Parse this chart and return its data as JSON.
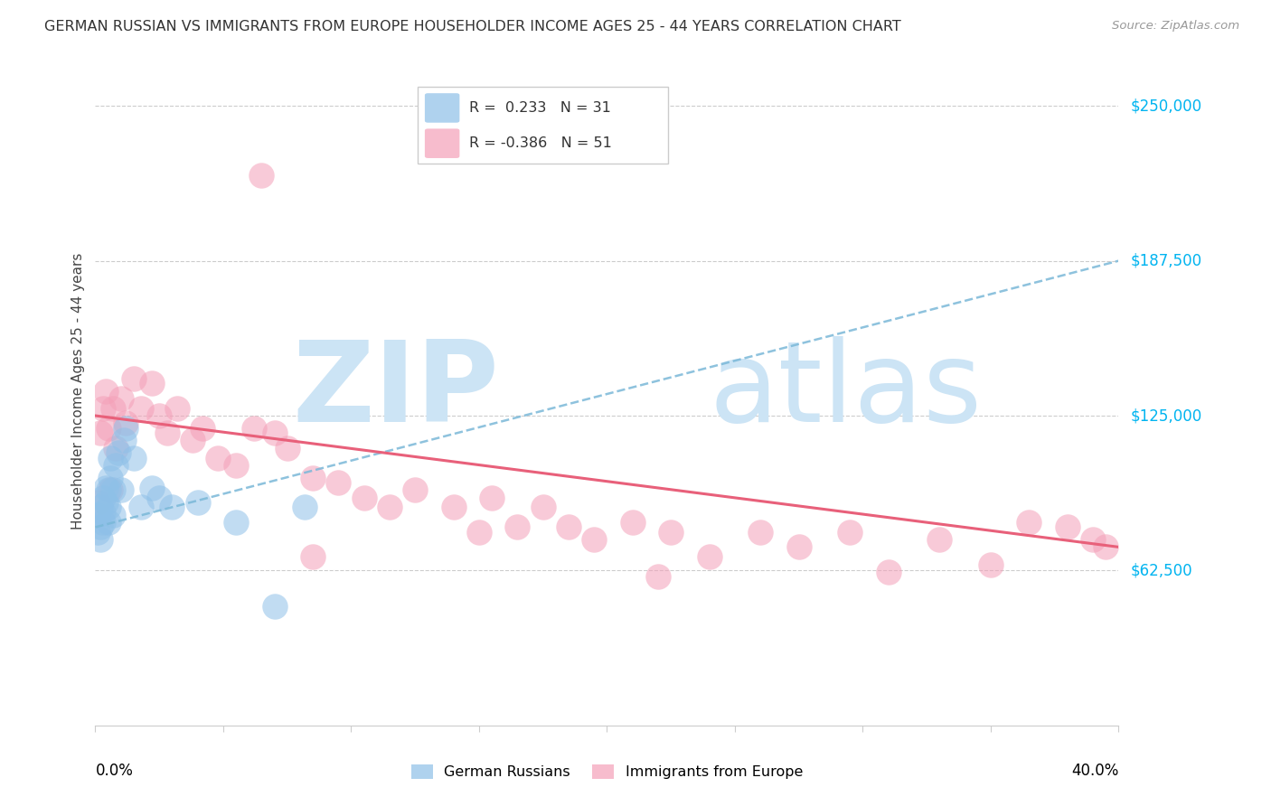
{
  "title": "GERMAN RUSSIAN VS IMMIGRANTS FROM EUROPE HOUSEHOLDER INCOME AGES 25 - 44 YEARS CORRELATION CHART",
  "source": "Source: ZipAtlas.com",
  "ylabel": "Householder Income Ages 25 - 44 years",
  "xmin": 0.0,
  "xmax": 0.4,
  "ymin": 0,
  "ymax": 270000,
  "ytick_values": [
    62500,
    125000,
    187500,
    250000
  ],
  "ytick_labels": [
    "$62,500",
    "$125,000",
    "$187,500",
    "$250,000"
  ],
  "xtick_positions": [
    0.0,
    0.05,
    0.1,
    0.15,
    0.2,
    0.25,
    0.3,
    0.35,
    0.4
  ],
  "blue_color": "#8ec0e8",
  "pink_color": "#f4a0b8",
  "blue_line_color": "#7ab8d8",
  "pink_line_color": "#e8607a",
  "right_label_color": "#00b4f0",
  "watermark_color": "#cce4f5",
  "grid_color": "#cccccc",
  "legend1_label": "German Russians",
  "legend2_label": "Immigrants from Europe",
  "blue_x": [
    0.001,
    0.001,
    0.002,
    0.002,
    0.002,
    0.003,
    0.003,
    0.003,
    0.004,
    0.004,
    0.005,
    0.005,
    0.005,
    0.006,
    0.006,
    0.007,
    0.007,
    0.008,
    0.009,
    0.01,
    0.011,
    0.012,
    0.015,
    0.018,
    0.022,
    0.025,
    0.03,
    0.04,
    0.055,
    0.07,
    0.082
  ],
  "blue_y": [
    78000,
    85000,
    80000,
    88000,
    75000,
    82000,
    92000,
    86000,
    90000,
    96000,
    82000,
    95000,
    88000,
    100000,
    108000,
    85000,
    95000,
    105000,
    110000,
    95000,
    115000,
    120000,
    108000,
    88000,
    96000,
    92000,
    88000,
    90000,
    82000,
    48000,
    88000
  ],
  "pink_x": [
    0.001,
    0.002,
    0.003,
    0.004,
    0.005,
    0.006,
    0.007,
    0.008,
    0.01,
    0.012,
    0.015,
    0.018,
    0.022,
    0.025,
    0.028,
    0.032,
    0.038,
    0.042,
    0.048,
    0.055,
    0.062,
    0.065,
    0.07,
    0.075,
    0.085,
    0.095,
    0.105,
    0.115,
    0.125,
    0.14,
    0.155,
    0.165,
    0.175,
    0.185,
    0.195,
    0.21,
    0.225,
    0.24,
    0.26,
    0.275,
    0.295,
    0.31,
    0.33,
    0.35,
    0.365,
    0.38,
    0.39,
    0.395,
    0.15,
    0.085,
    0.22
  ],
  "pink_y": [
    90000,
    118000,
    128000,
    135000,
    120000,
    95000,
    128000,
    112000,
    132000,
    122000,
    140000,
    128000,
    138000,
    125000,
    118000,
    128000,
    115000,
    120000,
    108000,
    105000,
    120000,
    222000,
    118000,
    112000,
    100000,
    98000,
    92000,
    88000,
    95000,
    88000,
    92000,
    80000,
    88000,
    80000,
    75000,
    82000,
    78000,
    68000,
    78000,
    72000,
    78000,
    62000,
    75000,
    65000,
    82000,
    80000,
    75000,
    72000,
    78000,
    68000,
    60000
  ]
}
